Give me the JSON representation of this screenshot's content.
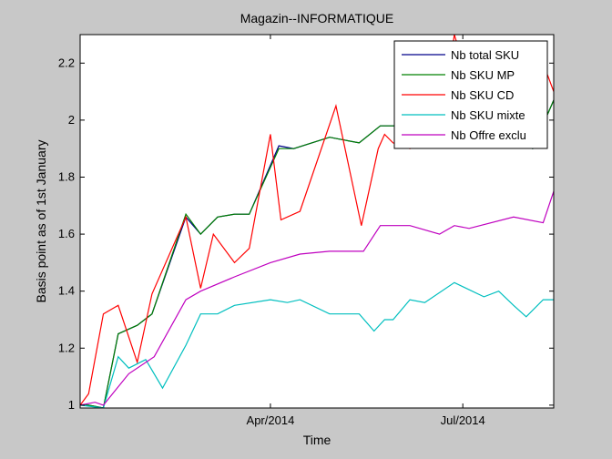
{
  "chart_data": {
    "type": "line",
    "title": "Magazin--INFORMATIQUE",
    "xlabel": "Time",
    "ylabel": "Basis point as of 1st January",
    "x_axis": {
      "kind": "date",
      "range": [
        "2014-01-01",
        "2014-08-13"
      ],
      "ticks": [
        {
          "date": "2014-04-01",
          "label": "Apr/2014"
        },
        {
          "date": "2014-07-01",
          "label": "Jul/2014"
        }
      ]
    },
    "ylim": [
      0.99,
      2.3
    ],
    "yticks": [
      1,
      1.2,
      1.4,
      1.6,
      1.8,
      2,
      2.2
    ],
    "ytick_labels": [
      "1",
      "1.2",
      "1.4",
      "1.6",
      "1.8",
      "2",
      "2.2"
    ],
    "grid": false,
    "legend_position": "top-right",
    "background": "#c8c8c8",
    "plot_background": "#ffffff",
    "series": [
      {
        "name": "Nb total SKU",
        "color": "#00008b",
        "points": [
          [
            "2014-01-01",
            1.0
          ],
          [
            "2014-01-05",
            1.0
          ],
          [
            "2014-01-12",
            0.99
          ],
          [
            "2014-01-19",
            1.25
          ],
          [
            "2014-01-28",
            1.28
          ],
          [
            "2014-02-04",
            1.32
          ],
          [
            "2014-02-20",
            1.66
          ],
          [
            "2014-02-27",
            1.6
          ],
          [
            "2014-03-07",
            1.66
          ],
          [
            "2014-03-15",
            1.67
          ],
          [
            "2014-03-22",
            1.67
          ],
          [
            "2014-04-05",
            1.91
          ],
          [
            "2014-04-12",
            1.9
          ],
          [
            "2014-04-29",
            1.94
          ],
          [
            "2014-05-06",
            1.93
          ],
          [
            "2014-05-13",
            1.92
          ],
          [
            "2014-05-23",
            1.98
          ],
          [
            "2014-05-30",
            1.98
          ],
          [
            "2014-06-06",
            1.99
          ],
          [
            "2014-06-13",
            2.05
          ],
          [
            "2014-06-20",
            2.05
          ],
          [
            "2014-07-20",
            1.95
          ],
          [
            "2014-08-03",
            1.9
          ],
          [
            "2014-08-13",
            2.07
          ]
        ]
      },
      {
        "name": "Nb SKU MP",
        "color": "#008000",
        "points": [
          [
            "2014-01-01",
            1.0
          ],
          [
            "2014-01-05",
            1.0
          ],
          [
            "2014-01-12",
            0.99
          ],
          [
            "2014-01-19",
            1.25
          ],
          [
            "2014-01-28",
            1.28
          ],
          [
            "2014-02-04",
            1.32
          ],
          [
            "2014-02-20",
            1.67
          ],
          [
            "2014-02-27",
            1.6
          ],
          [
            "2014-03-07",
            1.66
          ],
          [
            "2014-03-15",
            1.67
          ],
          [
            "2014-03-22",
            1.67
          ],
          [
            "2014-04-05",
            1.9
          ],
          [
            "2014-04-12",
            1.9
          ],
          [
            "2014-04-29",
            1.94
          ],
          [
            "2014-05-06",
            1.93
          ],
          [
            "2014-05-13",
            1.92
          ],
          [
            "2014-05-23",
            1.98
          ],
          [
            "2014-05-30",
            1.98
          ],
          [
            "2014-06-06",
            1.99
          ],
          [
            "2014-06-13",
            2.05
          ],
          [
            "2014-06-20",
            2.05
          ],
          [
            "2014-07-20",
            1.95
          ],
          [
            "2014-08-03",
            1.9
          ],
          [
            "2014-08-13",
            2.07
          ]
        ]
      },
      {
        "name": "Nb SKU CD",
        "color": "#ff0000",
        "points": [
          [
            "2014-01-01",
            1.0
          ],
          [
            "2014-01-05",
            1.04
          ],
          [
            "2014-01-12",
            1.32
          ],
          [
            "2014-01-19",
            1.35
          ],
          [
            "2014-01-28",
            1.15
          ],
          [
            "2014-02-04",
            1.39
          ],
          [
            "2014-02-20",
            1.66
          ],
          [
            "2014-02-27",
            1.41
          ],
          [
            "2014-03-05",
            1.6
          ],
          [
            "2014-03-15",
            1.5
          ],
          [
            "2014-03-22",
            1.55
          ],
          [
            "2014-04-01",
            1.95
          ],
          [
            "2014-04-06",
            1.65
          ],
          [
            "2014-04-15",
            1.68
          ],
          [
            "2014-05-02",
            2.05
          ],
          [
            "2014-05-14",
            1.63
          ],
          [
            "2014-05-22",
            1.9
          ],
          [
            "2014-05-25",
            1.95
          ],
          [
            "2014-05-29",
            1.92
          ],
          [
            "2014-06-06",
            1.9
          ],
          [
            "2014-06-13",
            1.92
          ],
          [
            "2014-06-22",
            2.05
          ],
          [
            "2014-06-27",
            2.3
          ],
          [
            "2014-07-01",
            2.2
          ],
          [
            "2014-08-08",
            2.2
          ],
          [
            "2014-08-13",
            2.1
          ]
        ]
      },
      {
        "name": "Nb SKU mixte",
        "color": "#00bfbf",
        "points": [
          [
            "2014-01-01",
            1.0
          ],
          [
            "2014-01-12",
            0.99
          ],
          [
            "2014-01-19",
            1.17
          ],
          [
            "2014-01-24",
            1.13
          ],
          [
            "2014-02-01",
            1.16
          ],
          [
            "2014-02-09",
            1.06
          ],
          [
            "2014-02-20",
            1.21
          ],
          [
            "2014-02-27",
            1.32
          ],
          [
            "2014-03-07",
            1.32
          ],
          [
            "2014-03-15",
            1.35
          ],
          [
            "2014-04-01",
            1.37
          ],
          [
            "2014-04-09",
            1.36
          ],
          [
            "2014-04-15",
            1.37
          ],
          [
            "2014-04-29",
            1.32
          ],
          [
            "2014-05-13",
            1.32
          ],
          [
            "2014-05-20",
            1.26
          ],
          [
            "2014-05-25",
            1.3
          ],
          [
            "2014-05-29",
            1.3
          ],
          [
            "2014-06-06",
            1.37
          ],
          [
            "2014-06-13",
            1.36
          ],
          [
            "2014-06-27",
            1.43
          ],
          [
            "2014-07-11",
            1.38
          ],
          [
            "2014-07-18",
            1.4
          ],
          [
            "2014-07-25",
            1.35
          ],
          [
            "2014-07-31",
            1.31
          ],
          [
            "2014-08-08",
            1.37
          ],
          [
            "2014-08-13",
            1.37
          ]
        ]
      },
      {
        "name": "Nb Offre exclu",
        "color": "#bf00bf",
        "points": [
          [
            "2014-01-01",
            1.0
          ],
          [
            "2014-01-08",
            1.01
          ],
          [
            "2014-01-12",
            1.0
          ],
          [
            "2014-01-24",
            1.11
          ],
          [
            "2014-02-05",
            1.17
          ],
          [
            "2014-02-20",
            1.37
          ],
          [
            "2014-02-27",
            1.4
          ],
          [
            "2014-03-15",
            1.45
          ],
          [
            "2014-04-01",
            1.5
          ],
          [
            "2014-04-15",
            1.53
          ],
          [
            "2014-04-29",
            1.54
          ],
          [
            "2014-05-15",
            1.54
          ],
          [
            "2014-05-23",
            1.63
          ],
          [
            "2014-06-06",
            1.63
          ],
          [
            "2014-06-20",
            1.6
          ],
          [
            "2014-06-27",
            1.63
          ],
          [
            "2014-07-04",
            1.62
          ],
          [
            "2014-07-25",
            1.66
          ],
          [
            "2014-08-08",
            1.64
          ],
          [
            "2014-08-13",
            1.75
          ]
        ]
      }
    ]
  }
}
